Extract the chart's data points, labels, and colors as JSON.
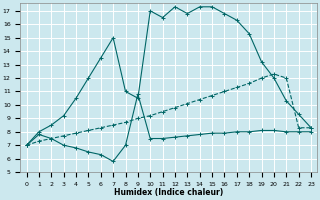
{
  "xlabel": "Humidex (Indice chaleur)",
  "bg_color": "#cce8ee",
  "grid_color": "#ffffff",
  "line_color": "#006666",
  "xlim": [
    -0.5,
    23.5
  ],
  "ylim": [
    5,
    17.6
  ],
  "xticks": [
    0,
    1,
    2,
    3,
    4,
    5,
    6,
    7,
    8,
    9,
    10,
    11,
    12,
    13,
    14,
    15,
    16,
    17,
    18,
    19,
    20,
    21,
    22,
    23
  ],
  "yticks": [
    5,
    6,
    7,
    8,
    9,
    10,
    11,
    12,
    13,
    14,
    15,
    16,
    17
  ],
  "line1_x": [
    0,
    1,
    2,
    3,
    4,
    5,
    6,
    7,
    8,
    9,
    10,
    11,
    12,
    13,
    14,
    15,
    16,
    17,
    18,
    19,
    20,
    21,
    22,
    23
  ],
  "line1_y": [
    7.0,
    8.0,
    8.5,
    9.2,
    10.5,
    12.0,
    13.5,
    15.0,
    11.0,
    10.5,
    17.0,
    16.5,
    17.3,
    16.8,
    17.3,
    17.3,
    16.8,
    16.3,
    15.3,
    13.2,
    12.0,
    10.3,
    9.3,
    8.3
  ],
  "line2_x": [
    0,
    1,
    2,
    3,
    4,
    5,
    6,
    7,
    8,
    9,
    10,
    11,
    12,
    13,
    14,
    15,
    16,
    17,
    18,
    19,
    20,
    21,
    22,
    23
  ],
  "line2_y": [
    7.0,
    7.3,
    7.5,
    7.7,
    7.9,
    8.1,
    8.3,
    8.5,
    8.7,
    9.0,
    9.2,
    9.5,
    9.8,
    10.1,
    10.4,
    10.7,
    11.0,
    11.3,
    11.6,
    12.0,
    12.3,
    12.0,
    8.3,
    8.3
  ],
  "line3_x": [
    0,
    1,
    2,
    3,
    4,
    5,
    6,
    7,
    8,
    9,
    10,
    11,
    12,
    13,
    14,
    15,
    16,
    17,
    18,
    19,
    20,
    21,
    22,
    23
  ],
  "line3_y": [
    7.0,
    7.8,
    7.5,
    7.0,
    6.8,
    6.5,
    6.3,
    5.8,
    7.0,
    10.8,
    7.5,
    7.5,
    7.6,
    7.7,
    7.8,
    7.9,
    7.9,
    8.0,
    8.0,
    8.1,
    8.1,
    8.0,
    8.0,
    8.0
  ]
}
